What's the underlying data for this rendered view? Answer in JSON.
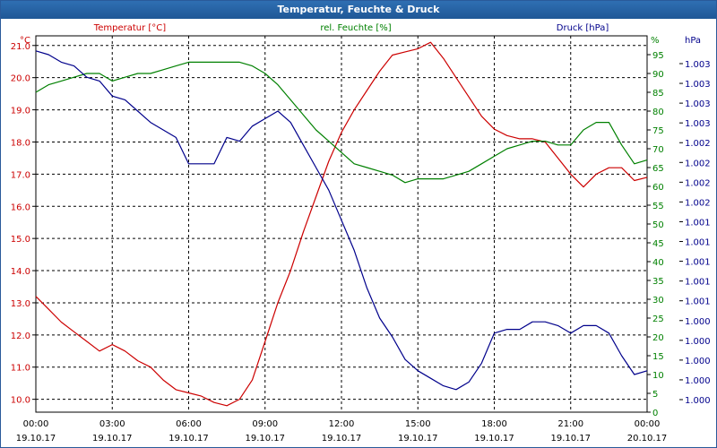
{
  "title": "Temperatur, Feuchte & Druck",
  "colors": {
    "temp": "#cc0000",
    "hum": "#008000",
    "press": "#00008b",
    "axis": "#000000",
    "grid": "#000000"
  },
  "chart_data": {
    "type": "line",
    "title": "Temperatur, Feuchte & Druck",
    "axes": {
      "left": {
        "unit": "°C",
        "label": "Temperatur [°C]",
        "ylim": [
          9.6,
          21.3
        ],
        "ticks": [
          "10.0",
          "11.0",
          "12.0",
          "13.0",
          "14.0",
          "15.0",
          "16.0",
          "17.0",
          "18.0",
          "19.0",
          "20.0",
          "21.0"
        ]
      },
      "right": {
        "unit": "%",
        "label": "rel. Feuchte [%]",
        "ylim": [
          0,
          100
        ],
        "ticks": [
          "0",
          "5",
          "10",
          "15",
          "20",
          "25",
          "30",
          "35",
          "40",
          "45",
          "50",
          "55",
          "60",
          "65",
          "70",
          "75",
          "80",
          "85",
          "90",
          "95"
        ]
      },
      "press": {
        "unit": "hPa",
        "label": "Druck [hPa]",
        "ticks": [
          "1.000",
          "1.000",
          "1.000",
          "1.000",
          "1.000",
          "1.001",
          "1.001",
          "1.001",
          "1.001",
          "1.001",
          "1.002",
          "1.002",
          "1.002",
          "1.002",
          "1.003",
          "1.003",
          "1.003",
          "1.003"
        ]
      }
    },
    "x_ticks": [
      {
        "time": "00:00",
        "date": "19.10.17"
      },
      {
        "time": "03:00",
        "date": "19.10.17"
      },
      {
        "time": "06:00",
        "date": "19.10.17"
      },
      {
        "time": "09:00",
        "date": "19.10.17"
      },
      {
        "time": "12:00",
        "date": "19.10.17"
      },
      {
        "time": "15:00",
        "date": "19.10.17"
      },
      {
        "time": "18:00",
        "date": "19.10.17"
      },
      {
        "time": "21:00",
        "date": "19.10.17"
      },
      {
        "time": "00:00",
        "date": "20.10.17"
      }
    ],
    "xlim_hours": [
      0,
      24
    ],
    "grid": true,
    "series": [
      {
        "name": "Temperatur [°C]",
        "axis": "left",
        "x": [
          0,
          0.5,
          1,
          1.5,
          2,
          2.5,
          3,
          3.5,
          4,
          4.5,
          5,
          5.5,
          6,
          6.5,
          7,
          7.5,
          8,
          8.5,
          9,
          9.5,
          10,
          10.5,
          11,
          11.5,
          12,
          12.5,
          13,
          13.5,
          14,
          14.5,
          15,
          15.5,
          16,
          16.5,
          17,
          17.5,
          18,
          18.5,
          19,
          19.5,
          20,
          20.5,
          21,
          21.5,
          22,
          22.5,
          23,
          23.5,
          24
        ],
        "values": [
          13.2,
          12.8,
          12.4,
          12.1,
          11.8,
          11.5,
          11.7,
          11.5,
          11.2,
          11.0,
          10.6,
          10.3,
          10.2,
          10.1,
          9.9,
          9.8,
          10.0,
          10.6,
          11.8,
          13.0,
          14.0,
          15.2,
          16.3,
          17.4,
          18.3,
          19.0,
          19.6,
          20.2,
          20.7,
          20.8,
          20.9,
          21.1,
          20.6,
          20.0,
          19.4,
          18.8,
          18.4,
          18.2,
          18.1,
          18.1,
          18.0,
          17.5,
          17.0,
          16.6,
          17.0,
          17.2,
          17.2,
          16.8,
          16.9
        ]
      },
      {
        "name": "rel. Feuchte [%]",
        "axis": "right",
        "x": [
          0,
          0.5,
          1,
          1.5,
          2,
          2.5,
          3,
          3.5,
          4,
          4.5,
          5,
          5.5,
          6,
          6.5,
          7,
          7.5,
          8,
          8.5,
          9,
          9.5,
          10,
          10.5,
          11,
          11.5,
          12,
          12.5,
          13,
          13.5,
          14,
          14.5,
          15,
          15.5,
          16,
          16.5,
          17,
          17.5,
          18,
          18.5,
          19,
          19.5,
          20,
          20.5,
          21,
          21.5,
          22,
          22.5,
          23,
          23.5,
          24
        ],
        "values": [
          85,
          87,
          88,
          89,
          90,
          90,
          88,
          89,
          90,
          90,
          91,
          92,
          93,
          93,
          93,
          93,
          93,
          92,
          90,
          87,
          83,
          79,
          75,
          72,
          69,
          66,
          65,
          64,
          63,
          61,
          62,
          62,
          62,
          63,
          64,
          66,
          68,
          70,
          71,
          72,
          72,
          71,
          71,
          75,
          77,
          77,
          71,
          66,
          67
        ]
      },
      {
        "name": "Druck [hPa]",
        "axis": "right",
        "x": [
          0,
          0.5,
          1,
          1.5,
          2,
          2.5,
          3,
          3.5,
          4,
          4.5,
          5,
          5.5,
          6,
          6.5,
          7,
          7.5,
          8,
          8.5,
          9,
          9.5,
          10,
          10.5,
          11,
          11.5,
          12,
          12.5,
          13,
          13.5,
          14,
          14.5,
          15,
          15.5,
          16,
          16.5,
          17,
          17.5,
          18,
          18.5,
          19,
          19.5,
          20,
          20.5,
          21,
          21.5,
          22,
          22.5,
          23,
          23.5,
          24
        ],
        "values": [
          96,
          95,
          93,
          92,
          89,
          88,
          84,
          83,
          80,
          77,
          75,
          73,
          66,
          66,
          66,
          73,
          72,
          76,
          78,
          80,
          77,
          71,
          65,
          59,
          51,
          43,
          33,
          25,
          20,
          14,
          11,
          9,
          7,
          6,
          8,
          13,
          21,
          22,
          22,
          24,
          24,
          23,
          21,
          23,
          23,
          21,
          15,
          10,
          11
        ]
      }
    ]
  }
}
